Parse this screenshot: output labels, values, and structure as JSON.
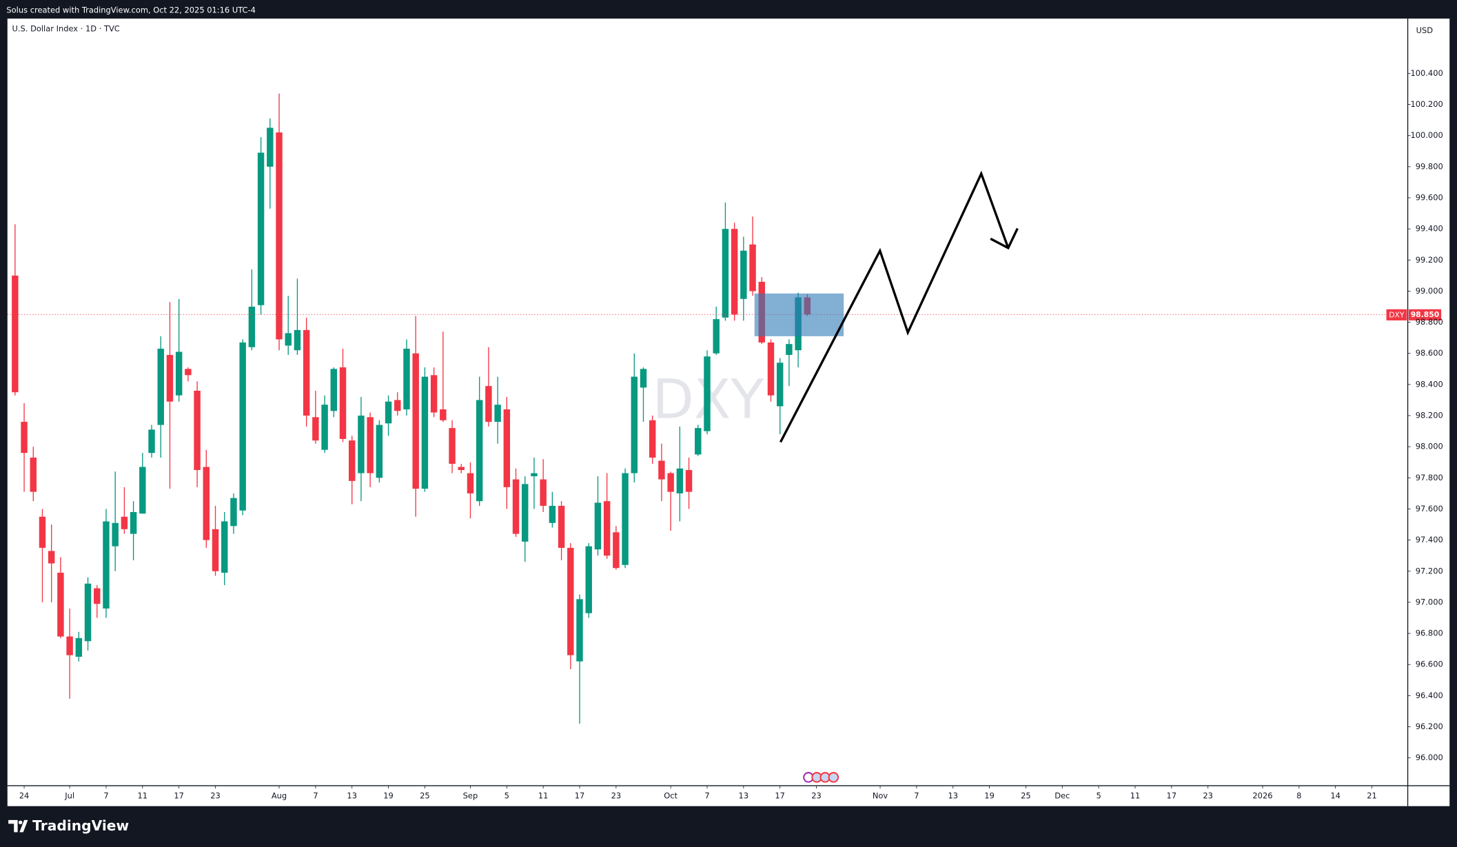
{
  "chart_data": {
    "type": "candlestick",
    "header": "Solus created with TradingView.com, Oct 22, 2025 01:16 UTC-4",
    "title": "U.S. Dollar Index · 1D · TVC",
    "watermark": "DXY",
    "currency": "USD",
    "brand": "TradingView",
    "symbol": "DXY",
    "last_price": {
      "value": 98.85,
      "label": "98.850"
    },
    "up_color": "#089981",
    "down_color": "#f23645",
    "x": [
      -1,
      0,
      1,
      2,
      3,
      4,
      5,
      6,
      7,
      8,
      9,
      10,
      11,
      12,
      13,
      14,
      15,
      16,
      17,
      18,
      19,
      20,
      21,
      22,
      23,
      24,
      25,
      26,
      27,
      28,
      29,
      30,
      31,
      32,
      33,
      34,
      35,
      36,
      37,
      38,
      39,
      40,
      41,
      42,
      43,
      44,
      45,
      46,
      47,
      48,
      49,
      50,
      51,
      52,
      53,
      54,
      55,
      56,
      57,
      58,
      59,
      60,
      61,
      62,
      63,
      64,
      65,
      66,
      67,
      68,
      69,
      70,
      71,
      72,
      73,
      74,
      75,
      76,
      77,
      78,
      79,
      80,
      81,
      82,
      83,
      84,
      85,
      86
    ],
    "open": [
      99.1,
      98.16,
      97.93,
      97.55,
      97.33,
      97.19,
      96.78,
      96.65,
      96.75,
      97.09,
      96.96,
      97.36,
      97.55,
      97.44,
      97.57,
      97.96,
      98.14,
      98.59,
      98.33,
      98.5,
      98.36,
      97.87,
      97.47,
      97.19,
      97.49,
      97.59,
      98.64,
      98.91,
      99.8,
      100.02,
      98.65,
      98.62,
      98.75,
      98.19,
      97.98,
      98.23,
      98.51,
      98.04,
      97.83,
      98.19,
      97.8,
      98.15,
      98.3,
      98.24,
      98.6,
      97.73,
      98.46,
      98.24,
      98.12,
      97.87,
      97.83,
      97.65,
      98.39,
      98.16,
      98.24,
      97.79,
      97.39,
      97.81,
      97.79,
      97.51,
      97.62,
      97.35,
      96.62,
      96.93,
      97.34,
      97.65,
      97.45,
      97.24,
      97.83,
      98.38,
      98.17,
      97.91,
      97.83,
      97.7,
      97.85,
      97.95,
      98.1,
      98.6,
      98.83,
      99.4,
      98.95,
      99.3,
      99.06,
      98.67,
      98.26,
      98.59,
      98.62,
      98.96
    ],
    "high": [
      99.43,
      98.28,
      98.0,
      97.6,
      97.5,
      97.29,
      96.96,
      96.81,
      97.16,
      97.11,
      97.6,
      97.84,
      97.74,
      97.65,
      97.96,
      98.14,
      98.71,
      98.93,
      98.95,
      98.51,
      98.42,
      97.98,
      97.62,
      97.58,
      97.7,
      98.69,
      99.14,
      99.99,
      100.11,
      100.27,
      98.97,
      99.08,
      98.83,
      98.36,
      98.33,
      98.51,
      98.63,
      98.07,
      98.32,
      98.22,
      98.17,
      98.33,
      98.35,
      98.69,
      98.84,
      98.51,
      98.51,
      98.74,
      98.17,
      97.89,
      97.9,
      98.45,
      98.64,
      98.45,
      98.32,
      97.86,
      97.81,
      97.93,
      97.92,
      97.71,
      97.65,
      97.38,
      97.05,
      97.38,
      97.81,
      97.83,
      97.49,
      97.86,
      98.6,
      98.51,
      98.2,
      98.02,
      97.84,
      98.13,
      97.93,
      98.14,
      98.62,
      98.9,
      99.57,
      99.44,
      99.35,
      99.48,
      99.09,
      98.69,
      98.57,
      98.69,
      98.99,
      98.98
    ],
    "low": [
      98.33,
      97.71,
      97.65,
      97.0,
      97.0,
      96.77,
      96.38,
      96.62,
      96.69,
      96.9,
      96.9,
      97.2,
      97.44,
      97.27,
      97.57,
      97.93,
      97.93,
      97.73,
      98.29,
      98.42,
      97.74,
      97.35,
      97.17,
      97.11,
      97.44,
      97.56,
      98.62,
      98.85,
      99.53,
      98.62,
      98.59,
      98.59,
      98.13,
      98.02,
      97.96,
      98.19,
      98.03,
      97.63,
      97.65,
      97.74,
      97.77,
      98.07,
      98.2,
      98.2,
      97.55,
      97.71,
      98.19,
      98.16,
      97.83,
      97.83,
      97.54,
      97.62,
      98.13,
      98.02,
      97.6,
      97.42,
      97.26,
      97.6,
      97.58,
      97.48,
      97.27,
      96.57,
      96.22,
      96.9,
      97.3,
      97.28,
      97.21,
      97.22,
      97.77,
      98.16,
      97.89,
      97.65,
      97.46,
      97.52,
      97.6,
      97.94,
      98.08,
      98.59,
      98.81,
      98.81,
      98.81,
      98.97,
      98.66,
      98.29,
      98.08,
      98.39,
      98.51,
      98.84
    ],
    "close": [
      98.35,
      97.96,
      97.71,
      97.35,
      97.25,
      96.78,
      96.66,
      96.77,
      97.12,
      96.99,
      97.52,
      97.51,
      97.47,
      97.58,
      97.87,
      98.11,
      98.63,
      98.29,
      98.61,
      98.46,
      97.85,
      97.4,
      97.2,
      97.52,
      97.67,
      98.67,
      98.9,
      99.89,
      100.05,
      98.69,
      98.73,
      98.75,
      98.2,
      98.04,
      98.27,
      98.5,
      98.05,
      97.78,
      98.2,
      97.83,
      98.14,
      98.29,
      98.23,
      98.63,
      97.73,
      98.45,
      98.22,
      98.17,
      97.89,
      97.85,
      97.7,
      98.3,
      98.16,
      98.27,
      97.74,
      97.44,
      97.76,
      97.83,
      97.62,
      97.62,
      97.35,
      96.66,
      97.02,
      97.36,
      97.64,
      97.3,
      97.22,
      97.83,
      98.45,
      98.5,
      97.93,
      97.79,
      97.71,
      97.86,
      97.71,
      98.12,
      98.58,
      98.82,
      99.4,
      98.85,
      99.26,
      99.0,
      98.67,
      98.33,
      98.54,
      98.66,
      98.96,
      98.85
    ],
    "xlim": [
      -1.837,
      151.939
    ],
    "ylim": [
      95.827,
      100.752
    ],
    "xticks": [
      {
        "value": 0,
        "label": "24"
      },
      {
        "value": 5,
        "label": "Jul"
      },
      {
        "value": 9,
        "label": "7"
      },
      {
        "value": 13,
        "label": "11"
      },
      {
        "value": 17,
        "label": "17"
      },
      {
        "value": 21,
        "label": "23"
      },
      {
        "value": 28,
        "label": "Aug"
      },
      {
        "value": 32,
        "label": "7"
      },
      {
        "value": 36,
        "label": "13"
      },
      {
        "value": 40,
        "label": "19"
      },
      {
        "value": 44,
        "label": "25"
      },
      {
        "value": 49,
        "label": "Sep"
      },
      {
        "value": 53,
        "label": "5"
      },
      {
        "value": 57,
        "label": "11"
      },
      {
        "value": 61,
        "label": "17"
      },
      {
        "value": 65,
        "label": "23"
      },
      {
        "value": 71,
        "label": "Oct"
      },
      {
        "value": 75,
        "label": "7"
      },
      {
        "value": 79,
        "label": "13"
      },
      {
        "value": 83,
        "label": "17"
      },
      {
        "value": 87,
        "label": "23"
      },
      {
        "value": 94,
        "label": "Nov"
      },
      {
        "value": 98,
        "label": "7"
      },
      {
        "value": 102,
        "label": "13"
      },
      {
        "value": 106,
        "label": "19"
      },
      {
        "value": 110,
        "label": "25"
      },
      {
        "value": 114,
        "label": "Dec"
      },
      {
        "value": 118,
        "label": "5"
      },
      {
        "value": 122,
        "label": "11"
      },
      {
        "value": 126,
        "label": "17"
      },
      {
        "value": 130,
        "label": "23"
      },
      {
        "value": 136,
        "label": "2026"
      },
      {
        "value": 140,
        "label": "8"
      },
      {
        "value": 144,
        "label": "14"
      },
      {
        "value": 148,
        "label": "21"
      }
    ],
    "yticks": [
      {
        "value": 96,
        "label": "96.000"
      },
      {
        "value": 96.2,
        "label": "96.200"
      },
      {
        "value": 96.4,
        "label": "96.400"
      },
      {
        "value": 96.6,
        "label": "96.600"
      },
      {
        "value": 96.8,
        "label": "96.800"
      },
      {
        "value": 97,
        "label": "97.000"
      },
      {
        "value": 97.2,
        "label": "97.200"
      },
      {
        "value": 97.4,
        "label": "97.400"
      },
      {
        "value": 97.6,
        "label": "97.600"
      },
      {
        "value": 97.8,
        "label": "97.800"
      },
      {
        "value": 98,
        "label": "98.000"
      },
      {
        "value": 98.2,
        "label": "98.200"
      },
      {
        "value": 98.4,
        "label": "98.400"
      },
      {
        "value": 98.6,
        "label": "98.600"
      },
      {
        "value": 98.8,
        "label": "98.800"
      },
      {
        "value": 99,
        "label": "99.000"
      },
      {
        "value": 99.2,
        "label": "99.200"
      },
      {
        "value": 99.4,
        "label": "99.400"
      },
      {
        "value": 99.6,
        "label": "99.600"
      },
      {
        "value": 99.8,
        "label": "99.800"
      },
      {
        "value": 100,
        "label": "100.000"
      },
      {
        "value": 100.2,
        "label": "100.200"
      },
      {
        "value": 100.4,
        "label": "100.400"
      }
    ]
  }
}
